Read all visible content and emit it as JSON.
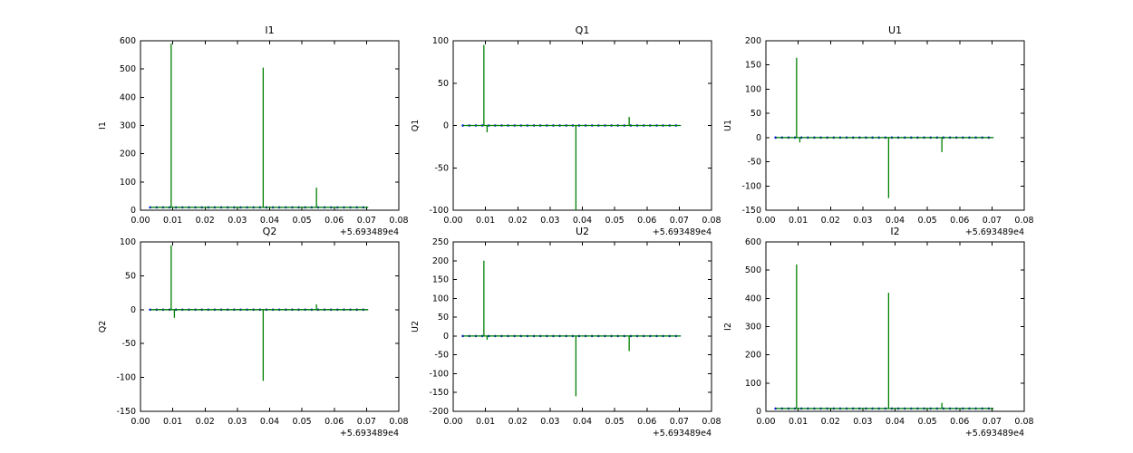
{
  "figure": {
    "background": "#ffffff",
    "rows": 2,
    "cols": 3
  },
  "chart_data": [
    {
      "type": "line",
      "title": "I1",
      "ylabel": "I1",
      "xlim": [
        0.0,
        0.08
      ],
      "ylim": [
        0,
        600
      ],
      "xticks": [
        0.0,
        0.01,
        0.02,
        0.03,
        0.04,
        0.05,
        0.06,
        0.07,
        0.08
      ],
      "xtick_labels": [
        "0.00",
        "0.01",
        "0.02",
        "0.03",
        "0.04",
        "0.05",
        "0.06",
        "0.07",
        "0.08"
      ],
      "yticks": [
        0,
        100,
        200,
        300,
        400,
        500,
        600
      ],
      "x_offset_label": "+5.693489e4",
      "x_data_range": [
        0.003,
        0.0705
      ],
      "baseline": 10,
      "spikes": [
        {
          "x": 0.0095,
          "y": 590
        },
        {
          "x": 0.038,
          "y": 505
        },
        {
          "x": 0.0545,
          "y": 80
        }
      ],
      "colors": {
        "baseline": "#0000ff",
        "spikes": "#008000"
      },
      "grid": false
    },
    {
      "type": "line",
      "title": "Q1",
      "ylabel": "Q1",
      "xlim": [
        0.0,
        0.08
      ],
      "ylim": [
        -100,
        100
      ],
      "xticks": [
        0.0,
        0.01,
        0.02,
        0.03,
        0.04,
        0.05,
        0.06,
        0.07,
        0.08
      ],
      "xtick_labels": [
        "0.00",
        "0.01",
        "0.02",
        "0.03",
        "0.04",
        "0.05",
        "0.06",
        "0.07",
        "0.08"
      ],
      "yticks": [
        -100,
        -50,
        0,
        50,
        100
      ],
      "x_offset_label": "+5.693489e4",
      "x_data_range": [
        0.003,
        0.0705
      ],
      "baseline": 0,
      "spikes": [
        {
          "x": 0.0095,
          "y": 95
        },
        {
          "x": 0.0105,
          "y": -8
        },
        {
          "x": 0.038,
          "y": -100
        },
        {
          "x": 0.0545,
          "y": 10
        }
      ],
      "colors": {
        "baseline": "#0000ff",
        "spikes": "#008000"
      },
      "grid": false
    },
    {
      "type": "line",
      "title": "U1",
      "ylabel": "U1",
      "xlim": [
        0.0,
        0.08
      ],
      "ylim": [
        -150,
        200
      ],
      "xticks": [
        0.0,
        0.01,
        0.02,
        0.03,
        0.04,
        0.05,
        0.06,
        0.07,
        0.08
      ],
      "xtick_labels": [
        "0.00",
        "0.01",
        "0.02",
        "0.03",
        "0.04",
        "0.05",
        "0.06",
        "0.07",
        "0.08"
      ],
      "yticks": [
        -150,
        -100,
        -50,
        0,
        50,
        100,
        150,
        200
      ],
      "x_offset_label": "+5.693489e4",
      "x_data_range": [
        0.003,
        0.0705
      ],
      "baseline": 0,
      "spikes": [
        {
          "x": 0.0095,
          "y": 165
        },
        {
          "x": 0.0105,
          "y": -10
        },
        {
          "x": 0.038,
          "y": -125
        },
        {
          "x": 0.0545,
          "y": -30
        }
      ],
      "colors": {
        "baseline": "#0000ff",
        "spikes": "#008000"
      },
      "grid": false
    },
    {
      "type": "line",
      "title": "Q2",
      "ylabel": "Q2",
      "xlim": [
        0.0,
        0.08
      ],
      "ylim": [
        -150,
        100
      ],
      "xticks": [
        0.0,
        0.01,
        0.02,
        0.03,
        0.04,
        0.05,
        0.06,
        0.07,
        0.08
      ],
      "xtick_labels": [
        "0.00",
        "0.01",
        "0.02",
        "0.03",
        "0.04",
        "0.05",
        "0.06",
        "0.07",
        "0.08"
      ],
      "yticks": [
        -150,
        -100,
        -50,
        0,
        50,
        100
      ],
      "x_offset_label": "+5.693489e4",
      "x_data_range": [
        0.003,
        0.0705
      ],
      "baseline": 0,
      "spikes": [
        {
          "x": 0.0095,
          "y": 95
        },
        {
          "x": 0.0105,
          "y": -12
        },
        {
          "x": 0.038,
          "y": -105
        },
        {
          "x": 0.0545,
          "y": 8
        }
      ],
      "colors": {
        "baseline": "#0000ff",
        "spikes": "#008000"
      },
      "grid": false
    },
    {
      "type": "line",
      "title": "U2",
      "ylabel": "U2",
      "xlim": [
        0.0,
        0.08
      ],
      "ylim": [
        -200,
        250
      ],
      "xticks": [
        0.0,
        0.01,
        0.02,
        0.03,
        0.04,
        0.05,
        0.06,
        0.07,
        0.08
      ],
      "xtick_labels": [
        "0.00",
        "0.01",
        "0.02",
        "0.03",
        "0.04",
        "0.05",
        "0.06",
        "0.07",
        "0.08"
      ],
      "yticks": [
        -200,
        -150,
        -100,
        -50,
        0,
        50,
        100,
        150,
        200,
        250
      ],
      "x_offset_label": "+5.693489e4",
      "x_data_range": [
        0.003,
        0.0705
      ],
      "baseline": 0,
      "spikes": [
        {
          "x": 0.0095,
          "y": 200
        },
        {
          "x": 0.0105,
          "y": -10
        },
        {
          "x": 0.038,
          "y": -160
        },
        {
          "x": 0.0545,
          "y": -40
        }
      ],
      "colors": {
        "baseline": "#0000ff",
        "spikes": "#008000"
      },
      "grid": false
    },
    {
      "type": "line",
      "title": "I2",
      "ylabel": "I2",
      "xlim": [
        0.0,
        0.08
      ],
      "ylim": [
        0,
        600
      ],
      "xticks": [
        0.0,
        0.01,
        0.02,
        0.03,
        0.04,
        0.05,
        0.06,
        0.07,
        0.08
      ],
      "xtick_labels": [
        "0.00",
        "0.01",
        "0.02",
        "0.03",
        "0.04",
        "0.05",
        "0.06",
        "0.07",
        "0.08"
      ],
      "yticks": [
        0,
        100,
        200,
        300,
        400,
        500,
        600
      ],
      "x_offset_label": "+5.693489e4",
      "x_data_range": [
        0.003,
        0.0705
      ],
      "baseline": 10,
      "spikes": [
        {
          "x": 0.0095,
          "y": 520
        },
        {
          "x": 0.038,
          "y": 420
        },
        {
          "x": 0.0545,
          "y": 30
        }
      ],
      "colors": {
        "baseline": "#0000ff",
        "spikes": "#008000"
      },
      "grid": false
    }
  ]
}
